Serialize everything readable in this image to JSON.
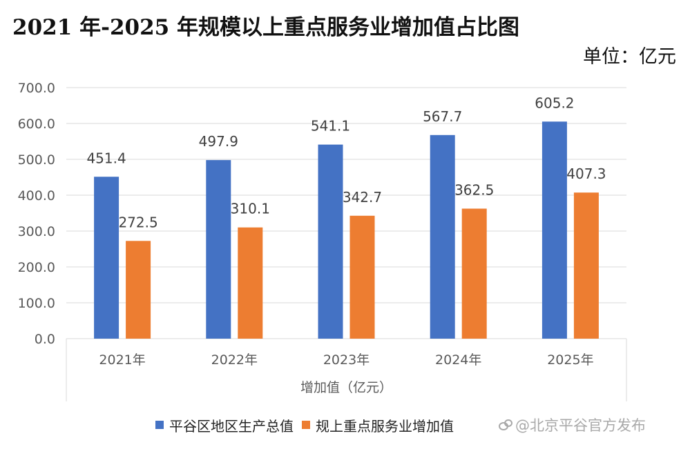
{
  "title": "2021 年-2025 年规模以上重点服务业增加值占比图",
  "unit_label": "单位：亿元",
  "colors": {
    "series1": "#4472C4",
    "series2": "#ED7D31",
    "grid": "#D9D9D9",
    "axis_text": "#595959"
  },
  "watermark": "@北京平谷官方发布",
  "chart_data": {
    "type": "bar",
    "title": "2021 年-2025 年规模以上重点服务业增加值占比图",
    "xlabel": "增加值（亿元）",
    "ylabel": "",
    "ylim": [
      0,
      700
    ],
    "ytick_step": 100,
    "ytick_labels": [
      "0.0",
      "100.0",
      "200.0",
      "300.0",
      "400.0",
      "500.0",
      "600.0",
      "700.0"
    ],
    "grid": true,
    "legend_position": "bottom",
    "categories": [
      "2021年",
      "2022年",
      "2023年",
      "2024年",
      "2025年"
    ],
    "series": [
      {
        "name": "平谷区地区生产总值",
        "values": [
          451.4,
          497.9,
          541.1,
          567.7,
          605.2
        ],
        "labels": [
          "451.4",
          "497.9",
          "541.1",
          "567.7",
          "605.2"
        ]
      },
      {
        "name": "规上重点服务业增加值",
        "values": [
          272.5,
          310.1,
          342.7,
          362.5,
          407.3
        ],
        "labels": [
          "272.5",
          "310.1",
          "342.7",
          "362.5",
          "407.3"
        ]
      }
    ]
  }
}
